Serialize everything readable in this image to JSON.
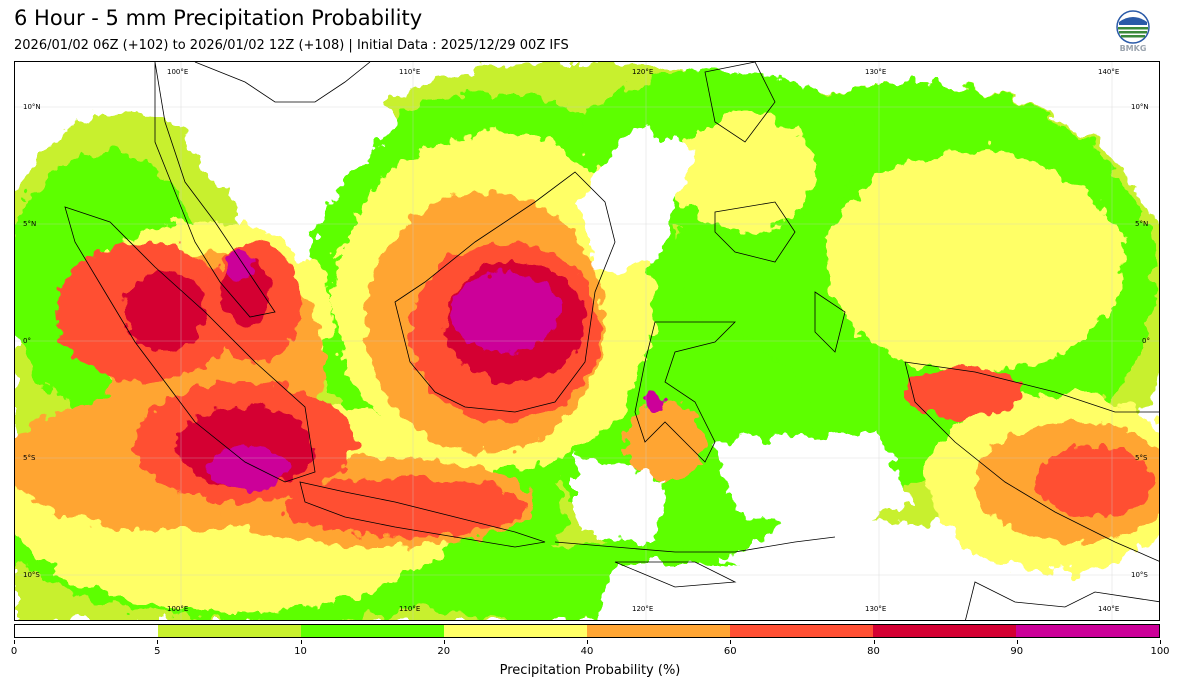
{
  "header": {
    "title": "6 Hour - 5 mm Precipitation Probability",
    "subtitle": "2026/01/02 06Z (+102) to 2026/01/02 12Z (+108) | Initial Data : 2025/12/29 00Z IFS",
    "logo_text": "BMKG"
  },
  "map": {
    "lon_labels": [
      "100°E",
      "110°E",
      "120°E",
      "130°E",
      "140°E"
    ],
    "lat_labels": [
      "10°N",
      "5°N",
      "0°",
      "5°S",
      "10°S"
    ],
    "colors": {
      "c0_5": "#ffffff",
      "c5_10": "#c8f02d",
      "c10_20": "#5dff00",
      "c20_40": "#ffff66",
      "c40_60": "#ffa533",
      "c60_80": "#ff4f33",
      "c80_90": "#d40033",
      "c90_100": "#cc0099",
      "coast": "#000000"
    }
  },
  "colorbar": {
    "ticks": [
      "0",
      "5",
      "10",
      "20",
      "40",
      "60",
      "80",
      "90",
      "100"
    ],
    "label": "Precipitation Probability (%)",
    "segments": [
      {
        "range": "0-5",
        "color": "#ffffff"
      },
      {
        "range": "5-10",
        "color": "#c8f02d"
      },
      {
        "range": "10-20",
        "color": "#5dff00"
      },
      {
        "range": "20-40",
        "color": "#ffff66"
      },
      {
        "range": "40-60",
        "color": "#ffa533"
      },
      {
        "range": "60-80",
        "color": "#ff4f33"
      },
      {
        "range": "80-90",
        "color": "#d40033"
      },
      {
        "range": "90-100",
        "color": "#cc0099"
      }
    ]
  }
}
